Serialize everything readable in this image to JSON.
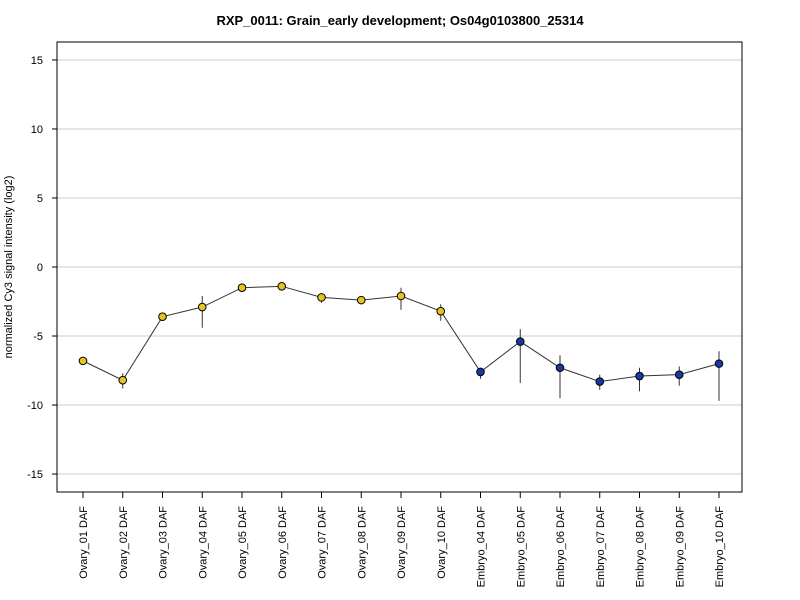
{
  "chart_data": {
    "type": "line",
    "title": "RXP_0011: Grain_early development; Os04g0103800_25314",
    "xlabel": "",
    "ylabel": "normalized Cy3 signal intensity (log2)",
    "ylim": [
      -16.3,
      16.3
    ],
    "yticks": [
      -15,
      -10,
      -5,
      0,
      5,
      10,
      15
    ],
    "grid": true,
    "categories": [
      "Ovary_01 DAF",
      "Ovary_02 DAF",
      "Ovary_03 DAF",
      "Ovary_04 DAF",
      "Ovary_05 DAF",
      "Ovary_06 DAF",
      "Ovary_07 DAF",
      "Ovary_08 DAF",
      "Ovary_09 DAF",
      "Ovary_10 DAF",
      "Embryo_04 DAF",
      "Embryo_05 DAF",
      "Embryo_06 DAF",
      "Embryo_07 DAF",
      "Embryo_08 DAF",
      "Embryo_09 DAF",
      "Embryo_10 DAF"
    ],
    "values": [
      -6.8,
      -8.2,
      -3.6,
      -2.9,
      -1.5,
      -1.4,
      -2.2,
      -2.4,
      -2.1,
      -3.2,
      -7.6,
      -5.4,
      -7.3,
      -8.3,
      -7.9,
      -7.8,
      -7.0
    ],
    "err_low": [
      -6.9,
      -8.8,
      -3.8,
      -4.4,
      -1.7,
      -1.5,
      -2.6,
      -2.7,
      -3.1,
      -3.9,
      -8.1,
      -8.4,
      -9.5,
      -8.9,
      -9.0,
      -8.6,
      -9.7
    ],
    "err_high": [
      -6.6,
      -7.7,
      -3.4,
      -2.1,
      -1.3,
      -1.3,
      -1.9,
      -2.1,
      -1.5,
      -2.7,
      -7.3,
      -4.5,
      -6.4,
      -7.8,
      -7.3,
      -7.2,
      -6.1
    ],
    "point_colors": [
      "#e8c21f",
      "#e8c21f",
      "#e8c21f",
      "#e8c21f",
      "#e8c21f",
      "#e8c21f",
      "#e8c21f",
      "#e8c21f",
      "#e8c21f",
      "#e8c21f",
      "#1a36a8",
      "#1a36a8",
      "#1a36a8",
      "#1a36a8",
      "#1a36a8",
      "#1a36a8",
      "#1a36a8"
    ],
    "line_color": "#333333",
    "grid_color": "#cccccc"
  }
}
